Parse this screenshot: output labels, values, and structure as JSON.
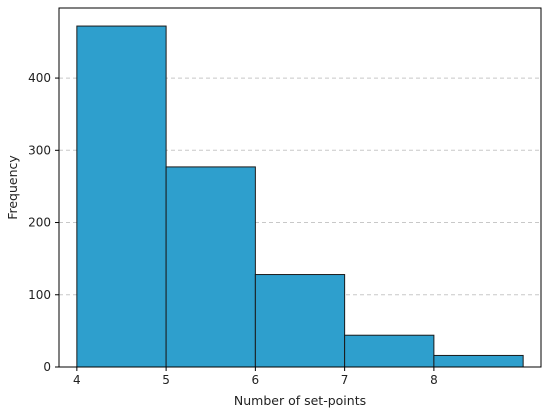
{
  "chart_data": {
    "type": "bar",
    "title": "",
    "xlabel": "Number of set-points",
    "ylabel": "Frequency",
    "bin_edges": [
      4,
      5,
      6,
      7,
      8,
      9
    ],
    "values": [
      472,
      277,
      128,
      44,
      16
    ],
    "xlim": [
      3.8,
      9.2
    ],
    "ylim": [
      0,
      497
    ],
    "xticks": [
      4,
      5,
      6,
      7,
      8
    ],
    "yticks": [
      0,
      100,
      200,
      300,
      400
    ],
    "grid": "y-dashed",
    "bar_color": "#2e9fcd",
    "edge_color": "#1a1a1a"
  }
}
